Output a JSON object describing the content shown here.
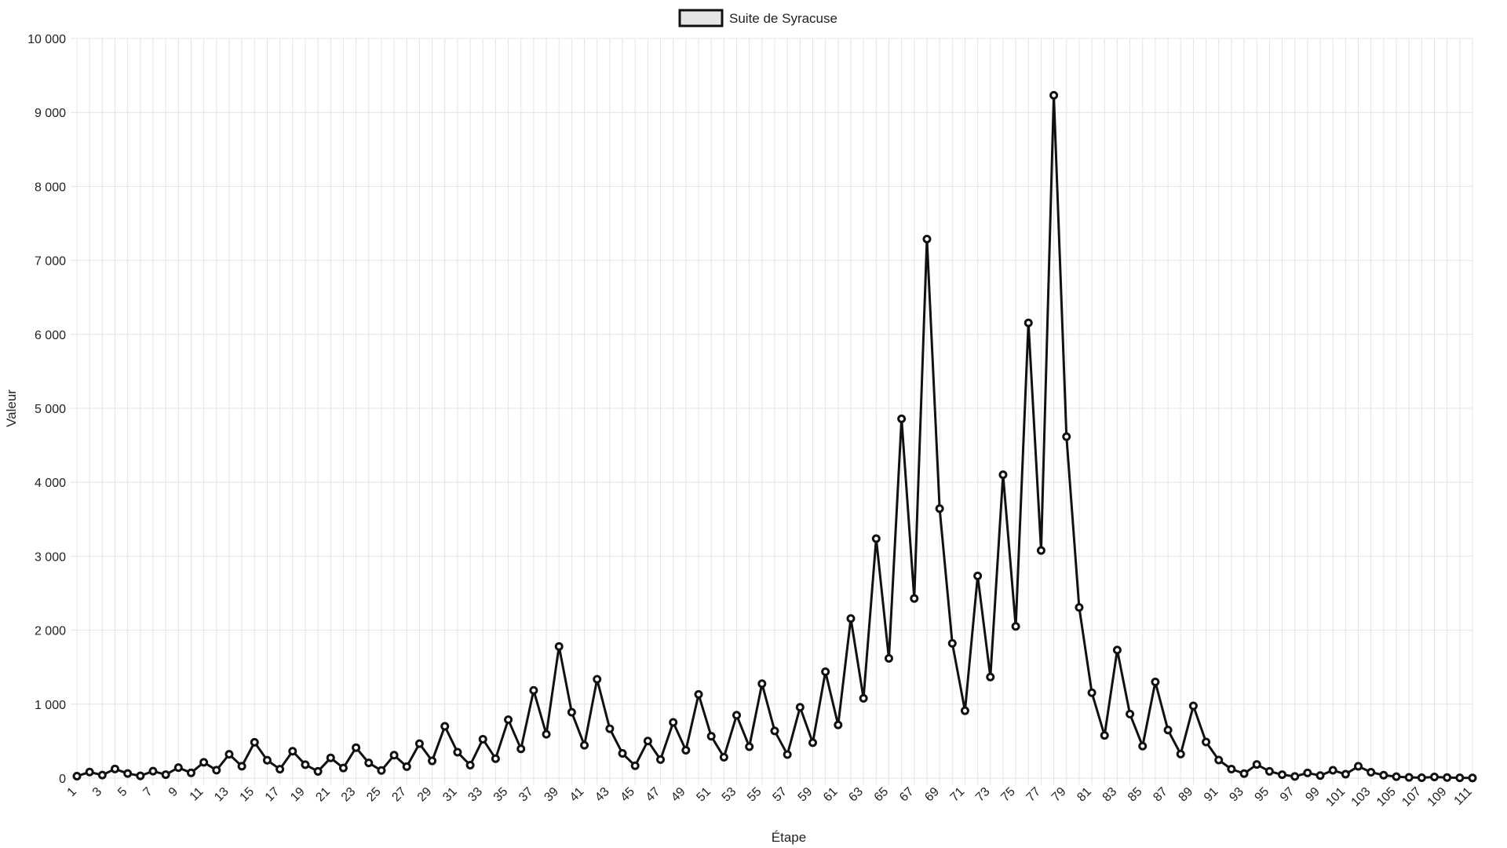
{
  "chart_data": {
    "type": "line",
    "title": "",
    "xlabel": "Étape",
    "ylabel": "Valeur",
    "legend_position": "top-center",
    "grid": true,
    "x": [
      1,
      2,
      3,
      4,
      5,
      6,
      7,
      8,
      9,
      10,
      11,
      12,
      13,
      14,
      15,
      16,
      17,
      18,
      19,
      20,
      21,
      22,
      23,
      24,
      25,
      26,
      27,
      28,
      29,
      30,
      31,
      32,
      33,
      34,
      35,
      36,
      37,
      38,
      39,
      40,
      41,
      42,
      43,
      44,
      45,
      46,
      47,
      48,
      49,
      50,
      51,
      52,
      53,
      54,
      55,
      56,
      57,
      58,
      59,
      60,
      61,
      62,
      63,
      64,
      65,
      66,
      67,
      68,
      69,
      70,
      71,
      72,
      73,
      74,
      75,
      76,
      77,
      78,
      79,
      80,
      81,
      82,
      83,
      84,
      85,
      86,
      87,
      88,
      89,
      90,
      91,
      92,
      93,
      94,
      95,
      96,
      97,
      98,
      99,
      100,
      101,
      102,
      103,
      104,
      105,
      106,
      107,
      108,
      109,
      110,
      111
    ],
    "ylim": [
      0,
      10000
    ],
    "y_ticks": [
      0,
      1000,
      2000,
      3000,
      4000,
      5000,
      6000,
      7000,
      8000,
      9000,
      10000
    ],
    "y_tick_labels": [
      "0",
      "1 000",
      "2 000",
      "3 000",
      "4 000",
      "5 000",
      "6 000",
      "7 000",
      "8 000",
      "9 000",
      "10 000"
    ],
    "x_tick_labels": [
      "1",
      "3",
      "5",
      "7",
      "9",
      "11",
      "13",
      "15",
      "17",
      "19",
      "21",
      "23",
      "25",
      "27",
      "29",
      "31",
      "33",
      "35",
      "37",
      "39",
      "41",
      "43",
      "45",
      "47",
      "49",
      "51",
      "53",
      "55",
      "57",
      "59",
      "61",
      "63",
      "65",
      "67",
      "69",
      "71",
      "73",
      "75",
      "77",
      "79",
      "81",
      "83",
      "85",
      "87",
      "89",
      "91",
      "93",
      "95",
      "97",
      "99",
      "101",
      "103",
      "105",
      "107",
      "109",
      "111"
    ],
    "series": [
      {
        "name": "Suite de Syracuse",
        "color": "#111111",
        "fill": "#e6e6e6",
        "values": [
          27,
          82,
          41,
          124,
          62,
          31,
          94,
          47,
          142,
          71,
          214,
          107,
          322,
          161,
          484,
          242,
          121,
          364,
          182,
          91,
          274,
          137,
          412,
          206,
          103,
          310,
          155,
          466,
          233,
          700,
          350,
          175,
          526,
          263,
          790,
          395,
          1186,
          593,
          1780,
          890,
          445,
          1336,
          668,
          334,
          167,
          502,
          251,
          754,
          377,
          1132,
          566,
          283,
          850,
          425,
          1276,
          638,
          319,
          958,
          479,
          1438,
          719,
          2158,
          1079,
          3238,
          1619,
          4858,
          2429,
          7288,
          3644,
          1822,
          911,
          2734,
          1367,
          4102,
          2051,
          6154,
          3077,
          9232,
          4616,
          2308,
          1154,
          577,
          1732,
          866,
          433,
          1300,
          650,
          325,
          976,
          488,
          244,
          122,
          61,
          184,
          92,
          46,
          23,
          70,
          35,
          106,
          53,
          160,
          80,
          40,
          20,
          10,
          5,
          16,
          8,
          4,
          2
        ]
      }
    ]
  }
}
